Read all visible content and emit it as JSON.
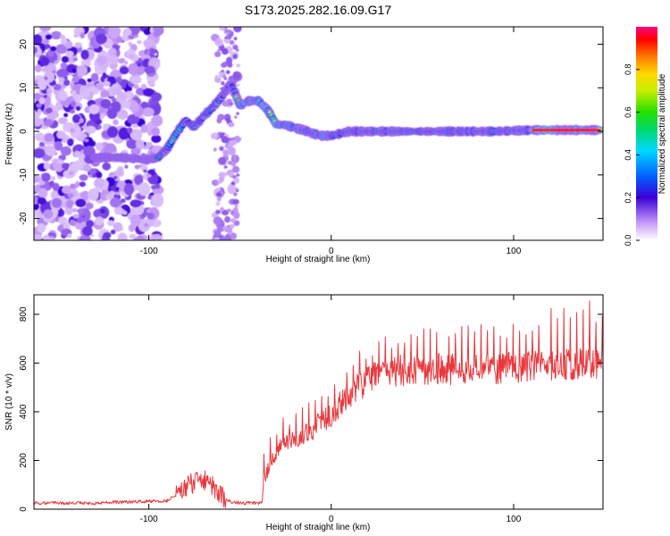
{
  "title": "S173.2025.282.16.09.G17",
  "chart_data": [
    {
      "type": "heatmap",
      "xlabel": "Height of straight line (km)",
      "ylabel": "Frequency (Hz)",
      "xlim": [
        -163,
        149
      ],
      "ylim": [
        -25,
        24
      ],
      "x_ticks": [
        -100,
        0,
        100
      ],
      "y_ticks": [
        -20,
        -10,
        0,
        10,
        20
      ],
      "ridge": {
        "x": [
          -130,
          -115,
          -100,
          -95,
          -90,
          -85,
          -80,
          -75,
          -70,
          -65,
          -60,
          -55,
          -50,
          -45,
          -40,
          -35,
          -30,
          -25,
          -20,
          -15,
          -10,
          -5,
          0,
          10,
          30,
          60,
          90,
          110,
          148
        ],
        "y": [
          -6,
          -6,
          -6.5,
          -6,
          -4,
          -0.5,
          2.5,
          1,
          3.5,
          5.5,
          8,
          11,
          6,
          7,
          7,
          5,
          1.5,
          1.5,
          0.8,
          0.3,
          -0.5,
          -1,
          -1,
          0,
          0,
          0,
          0,
          0.3,
          0.3
        ]
      },
      "colorbar": {
        "label": "Normalized spectral amplitude",
        "range": [
          0,
          1
        ],
        "ticks": [
          0.0,
          0.2,
          0.4,
          0.6,
          0.8
        ]
      }
    },
    {
      "type": "line",
      "xlabel": "Height of straight line (km)",
      "ylabel": "SNR (10 * v/v)",
      "xlim": [
        -163,
        149
      ],
      "ylim": [
        0,
        880
      ],
      "x_ticks": [
        -100,
        0,
        100
      ],
      "y_ticks": [
        0,
        200,
        400,
        600,
        800
      ],
      "color": "#e8383d",
      "envelope": {
        "x": [
          -163,
          -130,
          -90,
          -85,
          -80,
          -75,
          -70,
          -65,
          -60,
          -55,
          -45,
          -38,
          -37,
          -30,
          -20,
          -10,
          0,
          10,
          20,
          30,
          40,
          60,
          80,
          100,
          120,
          149
        ],
        "y": [
          25,
          25,
          35,
          55,
          90,
          110,
          120,
          95,
          50,
          30,
          25,
          25,
          120,
          240,
          290,
          330,
          390,
          470,
          530,
          560,
          570,
          575,
          575,
          580,
          590,
          600
        ]
      },
      "spikes": {
        "start": -37,
        "end": 149,
        "spacing": 3.5,
        "amplitude_start": 100,
        "amplitude_end": 240
      }
    }
  ]
}
